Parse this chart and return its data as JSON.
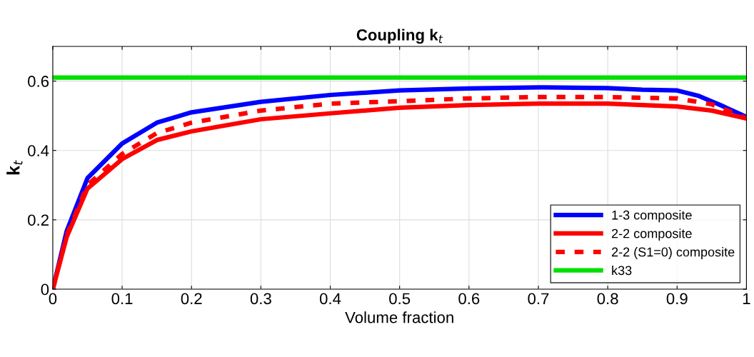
{
  "chart_data": {
    "type": "line",
    "title": "Coupling k$_{t}$",
    "xlabel": "Volume fraction",
    "ylabel": "k$_{t}$",
    "xlim": [
      0,
      1
    ],
    "ylim": [
      0,
      0.7
    ],
    "xticks": [
      0,
      0.1,
      0.2,
      0.3,
      0.4,
      0.5,
      0.6,
      0.7,
      0.8,
      0.9,
      1
    ],
    "yticks": [
      0,
      0.2,
      0.4,
      0.6
    ],
    "grid": true,
    "legend": "bottom right",
    "series": [
      {
        "name": "1-3 composite",
        "color": "#0000ff",
        "x": [
          0,
          0.02,
          0.05,
          0.1,
          0.15,
          0.2,
          0.3,
          0.4,
          0.5,
          0.6,
          0.7,
          0.8,
          0.85,
          0.9,
          0.93,
          0.96,
          0.99,
          1
        ],
        "values": [
          0,
          0.167,
          0.32,
          0.42,
          0.48,
          0.51,
          0.54,
          0.56,
          0.573,
          0.579,
          0.582,
          0.58,
          0.575,
          0.573,
          0.558,
          0.533,
          0.506,
          0.496
        ]
      },
      {
        "name": "2-2 composite",
        "color": "#ff0000",
        "x": [
          0,
          0.02,
          0.05,
          0.1,
          0.15,
          0.2,
          0.3,
          0.4,
          0.5,
          0.6,
          0.7,
          0.8,
          0.9,
          0.95,
          1
        ],
        "values": [
          0,
          0.15,
          0.29,
          0.375,
          0.43,
          0.455,
          0.49,
          0.507,
          0.523,
          0.531,
          0.535,
          0.535,
          0.527,
          0.515,
          0.492
        ]
      },
      {
        "name": "2-2 (S1=0) composite",
        "color": "#ff0000",
        "line_style": "dashed",
        "x": [
          0,
          0.02,
          0.05,
          0.1,
          0.15,
          0.2,
          0.3,
          0.4,
          0.5,
          0.6,
          0.7,
          0.8,
          0.9,
          0.95,
          1
        ],
        "values": [
          0,
          0.155,
          0.3,
          0.39,
          0.45,
          0.48,
          0.515,
          0.535,
          0.542,
          0.55,
          0.554,
          0.554,
          0.55,
          0.533,
          0.493
        ]
      },
      {
        "name": "k33",
        "color": "#00e000",
        "x": [
          0,
          1
        ],
        "values": [
          0.61,
          0.61
        ]
      }
    ]
  }
}
